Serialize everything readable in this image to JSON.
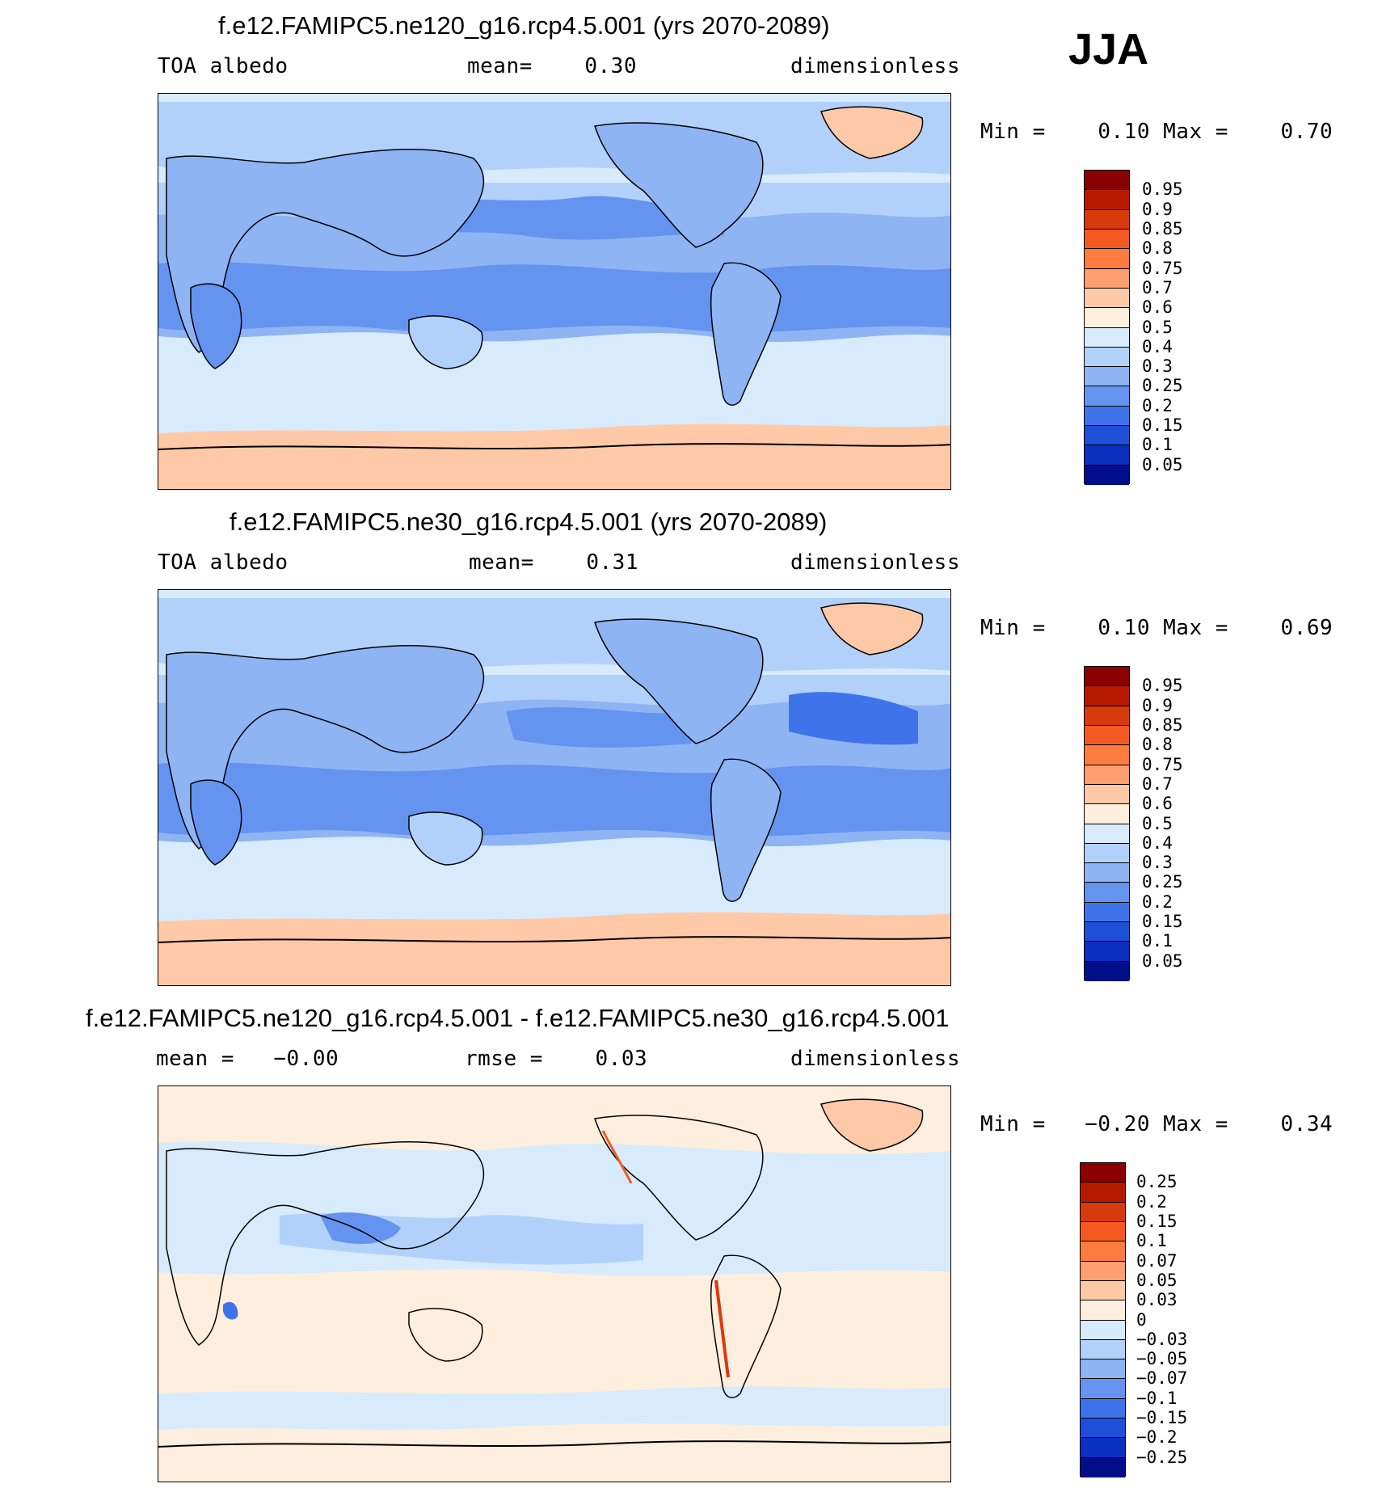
{
  "season": "JJA",
  "panels": [
    {
      "title": "f.e12.FAMIPC5.ne120_g16.rcp4.5.001 (yrs 2070-2089)",
      "left_label": "TOA albedo",
      "center_label": "mean=    0.30",
      "right_label": "dimensionless",
      "minmax": "Min =    0.10 Max =    0.70",
      "colorbar": {
        "colors": [
          "#8b0000",
          "#b51a00",
          "#d93a0c",
          "#f45a20",
          "#ff7c40",
          "#ff9f6f",
          "#ffc9a8",
          "#fdeedd",
          "#d8ebfc",
          "#b2d1fa",
          "#8fb4f4",
          "#6494f0",
          "#3e73ea",
          "#1e4fd8",
          "#0a30c0",
          "#000e8a"
        ],
        "ticks": [
          "0.95",
          "0.9",
          "0.85",
          "0.8",
          "0.75",
          "0.7",
          "0.6",
          "0.5",
          "0.4",
          "0.3",
          "0.25",
          "0.2",
          "0.15",
          "0.1",
          "0.05"
        ]
      }
    },
    {
      "title": "f.e12.FAMIPC5.ne30_g16.rcp4.5.001 (yrs 2070-2089)",
      "left_label": "TOA albedo",
      "center_label": "mean=    0.31",
      "right_label": "dimensionless",
      "minmax": "Min =    0.10 Max =    0.69",
      "colorbar": {
        "colors": [
          "#8b0000",
          "#b51a00",
          "#d93a0c",
          "#f45a20",
          "#ff7c40",
          "#ff9f6f",
          "#ffc9a8",
          "#fdeedd",
          "#d8ebfc",
          "#b2d1fa",
          "#8fb4f4",
          "#6494f0",
          "#3e73ea",
          "#1e4fd8",
          "#0a30c0",
          "#000e8a"
        ],
        "ticks": [
          "0.95",
          "0.9",
          "0.85",
          "0.8",
          "0.75",
          "0.7",
          "0.6",
          "0.5",
          "0.4",
          "0.3",
          "0.25",
          "0.2",
          "0.15",
          "0.1",
          "0.05"
        ]
      }
    },
    {
      "title": "f.e12.FAMIPC5.ne120_g16.rcp4.5.001 - f.e12.FAMIPC5.ne30_g16.rcp4.5.001",
      "left_label": "mean =   −0.00",
      "center_label": "rmse =    0.03",
      "right_label": "dimensionless",
      "minmax": "Min =   −0.20 Max =    0.34",
      "colorbar": {
        "colors": [
          "#8b0000",
          "#b51a00",
          "#d93a0c",
          "#f45a20",
          "#ff7c40",
          "#ff9f6f",
          "#ffc9a8",
          "#fdeedd",
          "#d8ebfc",
          "#b2d1fa",
          "#8fb4f4",
          "#6494f0",
          "#3e73ea",
          "#1e4fd8",
          "#0a30c0",
          "#000e8a"
        ],
        "ticks": [
          "0.25",
          "0.2",
          "0.15",
          "0.1",
          "0.07",
          "0.05",
          "0.03",
          "0",
          "−0.03",
          "−0.05",
          "−0.07",
          "−0.1",
          "−0.15",
          "−0.2",
          "−0.25"
        ]
      }
    }
  ],
  "field_colors": {
    "ocean_light": "#d8ebfc",
    "ocean_mid": "#b2d1fa",
    "ocean_blue": "#8fb4f4",
    "ocean_dark": "#6494f0",
    "ocean_darker": "#3e73ea",
    "ice": "#ffc9a8",
    "near_zero_pos": "#fdeedd",
    "coast": "#000000"
  }
}
